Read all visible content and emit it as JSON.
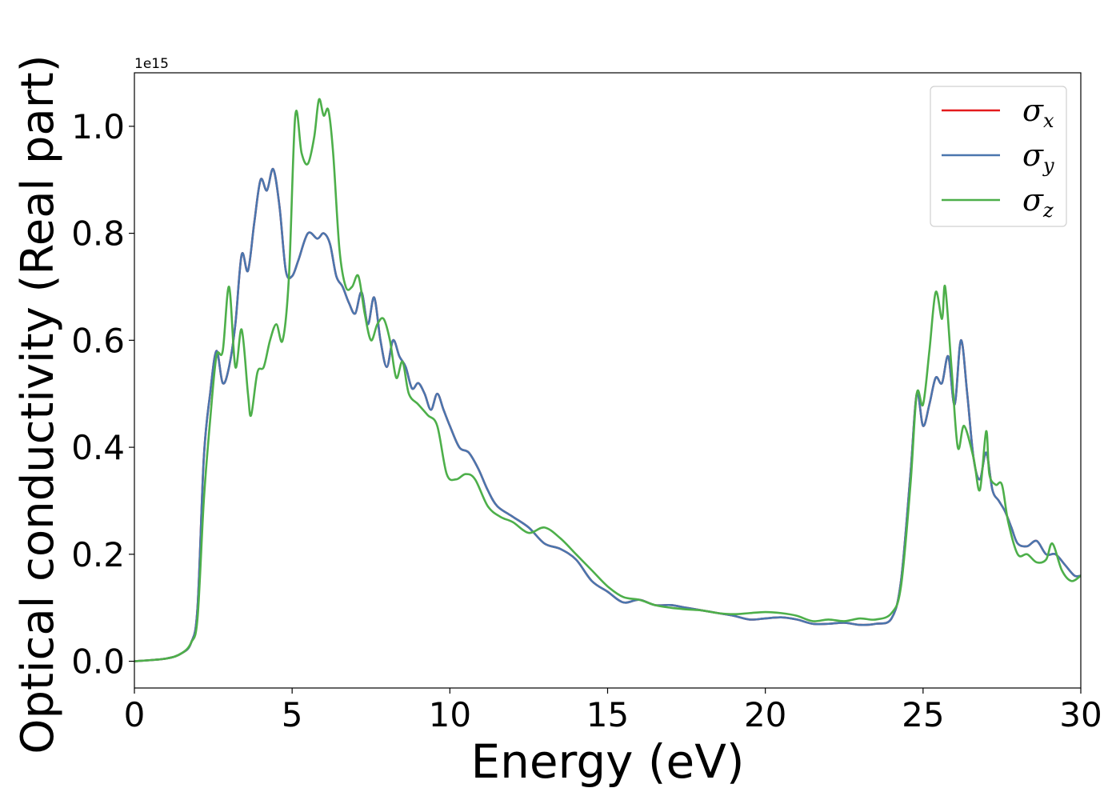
{
  "chart_data": {
    "type": "line",
    "xlabel": "Energy (eV)",
    "ylabel": "Optical conductivity (Real part)",
    "y_offset_label": "1e15",
    "xlim": [
      0,
      30
    ],
    "ylim": [
      -0.05,
      1.1
    ],
    "x_ticks": [
      0,
      5,
      10,
      15,
      20,
      25,
      30
    ],
    "y_ticks": [
      0.0,
      0.2,
      0.4,
      0.6,
      0.8,
      1.0
    ],
    "x_tick_labels": [
      "0",
      "5",
      "10",
      "15",
      "20",
      "25",
      "30"
    ],
    "y_tick_labels": [
      "0.0",
      "0.2",
      "0.4",
      "0.6",
      "0.8",
      "1.0"
    ],
    "grid": false,
    "legend_position": "top-right",
    "series": [
      {
        "name": "σx",
        "symbol": "σ",
        "subscript": "x",
        "color": "#e41a1c",
        "x": [
          0,
          1,
          1.5,
          1.8,
          2.0,
          2.2,
          2.4,
          2.6,
          2.8,
          3.0,
          3.2,
          3.4,
          3.6,
          3.8,
          4.0,
          4.2,
          4.4,
          4.6,
          4.8,
          5.0,
          5.2,
          5.5,
          5.8,
          6.0,
          6.2,
          6.4,
          6.6,
          6.8,
          7.0,
          7.2,
          7.4,
          7.6,
          7.8,
          8.0,
          8.2,
          8.4,
          8.6,
          8.8,
          9.0,
          9.2,
          9.4,
          9.6,
          9.8,
          10.0,
          10.3,
          10.6,
          10.9,
          11.2,
          11.5,
          12.0,
          12.5,
          13.0,
          13.5,
          14.0,
          14.5,
          15.0,
          15.5,
          16.0,
          16.5,
          17.0,
          17.5,
          18.0,
          18.5,
          19.0,
          19.5,
          20.0,
          20.5,
          21.0,
          21.5,
          22.0,
          22.5,
          23.0,
          23.5,
          24.0,
          24.3,
          24.6,
          24.8,
          25.0,
          25.2,
          25.4,
          25.6,
          25.8,
          26.0,
          26.2,
          26.4,
          26.6,
          26.8,
          27.0,
          27.2,
          27.4,
          27.6,
          27.8,
          28.0,
          28.3,
          28.6,
          28.9,
          29.2,
          29.5,
          29.8,
          30.0
        ],
        "values": [
          0.0,
          0.005,
          0.015,
          0.035,
          0.1,
          0.38,
          0.5,
          0.58,
          0.52,
          0.55,
          0.63,
          0.76,
          0.73,
          0.82,
          0.9,
          0.88,
          0.92,
          0.85,
          0.73,
          0.72,
          0.75,
          0.8,
          0.79,
          0.8,
          0.78,
          0.72,
          0.7,
          0.67,
          0.65,
          0.69,
          0.63,
          0.68,
          0.6,
          0.55,
          0.6,
          0.57,
          0.55,
          0.51,
          0.52,
          0.5,
          0.47,
          0.5,
          0.47,
          0.44,
          0.4,
          0.39,
          0.36,
          0.32,
          0.29,
          0.27,
          0.25,
          0.22,
          0.21,
          0.19,
          0.15,
          0.13,
          0.11,
          0.115,
          0.105,
          0.105,
          0.1,
          0.095,
          0.09,
          0.085,
          0.078,
          0.08,
          0.082,
          0.078,
          0.07,
          0.07,
          0.072,
          0.068,
          0.07,
          0.08,
          0.15,
          0.35,
          0.5,
          0.44,
          0.48,
          0.53,
          0.52,
          0.57,
          0.48,
          0.6,
          0.5,
          0.38,
          0.34,
          0.39,
          0.32,
          0.3,
          0.28,
          0.25,
          0.22,
          0.215,
          0.225,
          0.2,
          0.2,
          0.18,
          0.16,
          0.16
        ]
      },
      {
        "name": "σy",
        "symbol": "σ",
        "subscript": "y",
        "color": "#4a76ae",
        "x": [
          0,
          1,
          1.5,
          1.8,
          2.0,
          2.2,
          2.4,
          2.6,
          2.8,
          3.0,
          3.2,
          3.4,
          3.6,
          3.8,
          4.0,
          4.2,
          4.4,
          4.6,
          4.8,
          5.0,
          5.2,
          5.5,
          5.8,
          6.0,
          6.2,
          6.4,
          6.6,
          6.8,
          7.0,
          7.2,
          7.4,
          7.6,
          7.8,
          8.0,
          8.2,
          8.4,
          8.6,
          8.8,
          9.0,
          9.2,
          9.4,
          9.6,
          9.8,
          10.0,
          10.3,
          10.6,
          10.9,
          11.2,
          11.5,
          12.0,
          12.5,
          13.0,
          13.5,
          14.0,
          14.5,
          15.0,
          15.5,
          16.0,
          16.5,
          17.0,
          17.5,
          18.0,
          18.5,
          19.0,
          19.5,
          20.0,
          20.5,
          21.0,
          21.5,
          22.0,
          22.5,
          23.0,
          23.5,
          24.0,
          24.3,
          24.6,
          24.8,
          25.0,
          25.2,
          25.4,
          25.6,
          25.8,
          26.0,
          26.2,
          26.4,
          26.6,
          26.8,
          27.0,
          27.2,
          27.4,
          27.6,
          27.8,
          28.0,
          28.3,
          28.6,
          28.9,
          29.2,
          29.5,
          29.8,
          30.0
        ],
        "values": [
          0.0,
          0.005,
          0.015,
          0.035,
          0.1,
          0.38,
          0.5,
          0.58,
          0.52,
          0.55,
          0.63,
          0.76,
          0.73,
          0.82,
          0.9,
          0.88,
          0.92,
          0.85,
          0.73,
          0.72,
          0.75,
          0.8,
          0.79,
          0.8,
          0.78,
          0.72,
          0.7,
          0.67,
          0.65,
          0.69,
          0.63,
          0.68,
          0.6,
          0.55,
          0.6,
          0.57,
          0.55,
          0.51,
          0.52,
          0.5,
          0.47,
          0.5,
          0.47,
          0.44,
          0.4,
          0.39,
          0.36,
          0.32,
          0.29,
          0.27,
          0.25,
          0.22,
          0.21,
          0.19,
          0.15,
          0.13,
          0.11,
          0.115,
          0.105,
          0.105,
          0.1,
          0.095,
          0.09,
          0.085,
          0.078,
          0.08,
          0.082,
          0.078,
          0.07,
          0.07,
          0.072,
          0.068,
          0.07,
          0.08,
          0.15,
          0.35,
          0.5,
          0.44,
          0.48,
          0.53,
          0.52,
          0.57,
          0.48,
          0.6,
          0.5,
          0.38,
          0.34,
          0.39,
          0.32,
          0.3,
          0.28,
          0.25,
          0.22,
          0.215,
          0.225,
          0.2,
          0.2,
          0.18,
          0.16,
          0.16
        ]
      },
      {
        "name": "σz",
        "symbol": "σ",
        "subscript": "z",
        "color": "#4daf4a",
        "x": [
          0,
          1,
          1.5,
          1.8,
          2.0,
          2.2,
          2.4,
          2.6,
          2.8,
          3.0,
          3.2,
          3.4,
          3.6,
          3.7,
          3.9,
          4.1,
          4.3,
          4.5,
          4.7,
          4.9,
          5.1,
          5.3,
          5.5,
          5.7,
          5.85,
          6.0,
          6.15,
          6.3,
          6.5,
          6.7,
          6.9,
          7.1,
          7.3,
          7.5,
          7.7,
          7.9,
          8.1,
          8.3,
          8.5,
          8.7,
          9.0,
          9.3,
          9.6,
          9.9,
          10.2,
          10.5,
          10.8,
          11.2,
          11.6,
          12.0,
          12.5,
          13.0,
          13.5,
          14.0,
          14.5,
          15.0,
          15.5,
          16.0,
          16.5,
          17.0,
          17.5,
          18.0,
          18.5,
          19.0,
          19.5,
          20.0,
          20.5,
          21.0,
          21.5,
          22.0,
          22.5,
          23.0,
          23.5,
          24.0,
          24.3,
          24.6,
          24.8,
          25.0,
          25.2,
          25.4,
          25.6,
          25.7,
          25.9,
          26.1,
          26.3,
          26.6,
          26.8,
          27.0,
          27.1,
          27.3,
          27.5,
          27.7,
          28.0,
          28.3,
          28.6,
          28.9,
          29.1,
          29.4,
          29.7,
          30.0
        ],
        "values": [
          0.0,
          0.005,
          0.015,
          0.035,
          0.08,
          0.3,
          0.45,
          0.57,
          0.58,
          0.7,
          0.55,
          0.62,
          0.5,
          0.46,
          0.54,
          0.55,
          0.6,
          0.63,
          0.6,
          0.72,
          1.02,
          0.95,
          0.93,
          0.98,
          1.05,
          1.02,
          1.03,
          0.95,
          0.77,
          0.7,
          0.7,
          0.72,
          0.65,
          0.6,
          0.63,
          0.64,
          0.6,
          0.53,
          0.56,
          0.5,
          0.48,
          0.46,
          0.44,
          0.35,
          0.34,
          0.35,
          0.34,
          0.29,
          0.27,
          0.26,
          0.24,
          0.25,
          0.23,
          0.2,
          0.17,
          0.14,
          0.12,
          0.115,
          0.105,
          0.1,
          0.097,
          0.095,
          0.09,
          0.088,
          0.09,
          0.092,
          0.09,
          0.085,
          0.075,
          0.078,
          0.075,
          0.08,
          0.078,
          0.09,
          0.14,
          0.33,
          0.5,
          0.48,
          0.58,
          0.69,
          0.64,
          0.7,
          0.55,
          0.4,
          0.44,
          0.38,
          0.32,
          0.43,
          0.35,
          0.33,
          0.33,
          0.26,
          0.2,
          0.2,
          0.185,
          0.19,
          0.22,
          0.17,
          0.15,
          0.16
        ]
      }
    ]
  }
}
